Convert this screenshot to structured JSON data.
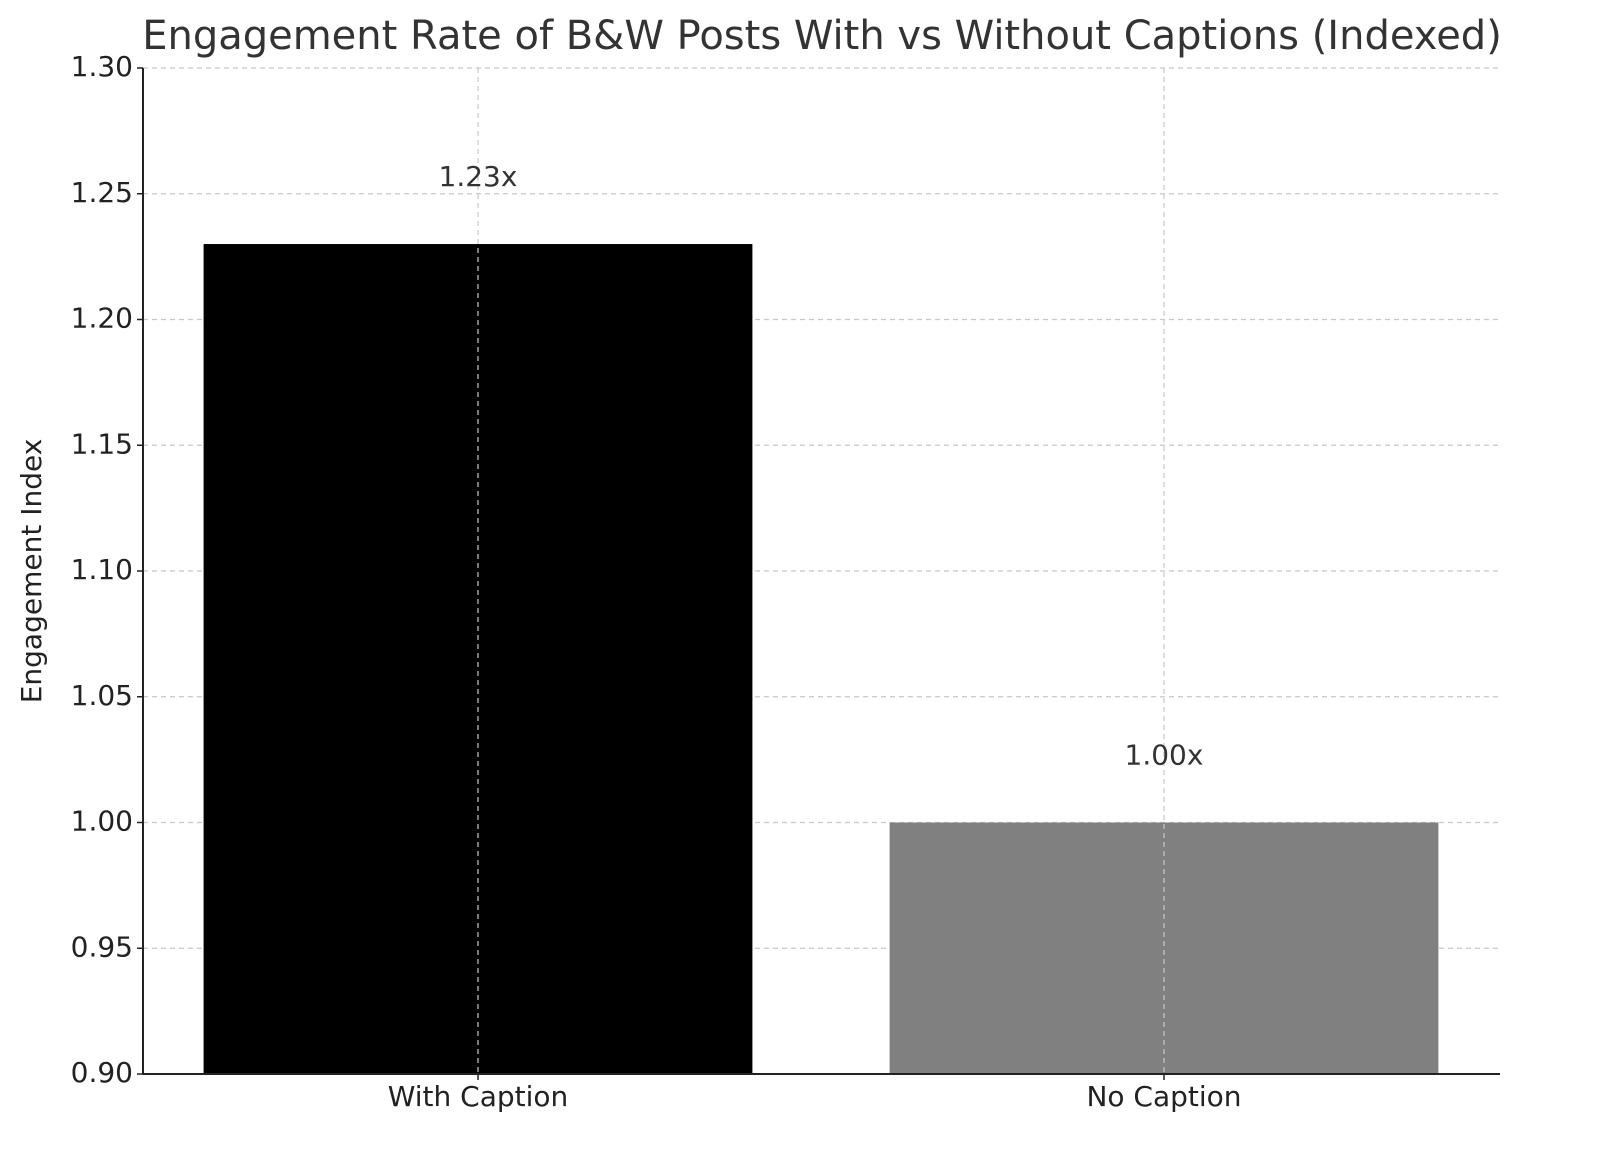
{
  "chart_data": {
    "type": "bar",
    "title": "Engagement Rate of B&W Posts With vs Without Captions (Indexed)",
    "y_label": "Engagement Index",
    "categories": [
      "With Caption",
      "No Caption"
    ],
    "values": [
      1.23,
      1.0
    ],
    "value_labels": [
      "1.23x",
      "1.00x"
    ],
    "colors": [
      "#000000",
      "#808080"
    ],
    "ylim": [
      0.9,
      1.3
    ],
    "yticks": [
      {
        "value": 0.9,
        "label": "0.90"
      },
      0.95,
      {
        "value": 1.0,
        "label": "1.00"
      },
      1.05,
      {
        "value": 1.1,
        "label": "1.10"
      },
      1.15,
      {
        "value": 1.2,
        "label": "1.20"
      },
      1.25,
      {
        "value": 1.3,
        "label": "1.30"
      }
    ],
    "grid": true
  }
}
